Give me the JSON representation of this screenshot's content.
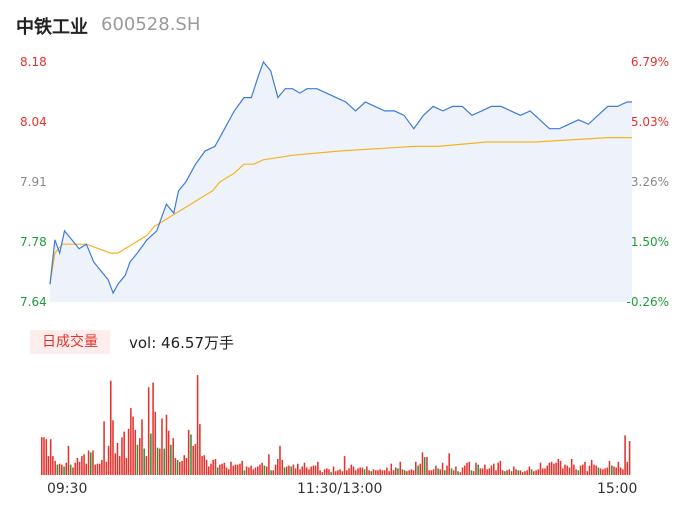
{
  "header": {
    "name": "中铁工业",
    "code": "600528.SH"
  },
  "volume_panel": {
    "tab_label": "日成交量",
    "vol_prefix": "vol: ",
    "vol_value": "46.57万手"
  },
  "colors": {
    "price_line": "#3e7bdc",
    "avg_line": "#f5b324",
    "up": "#e5322d",
    "down": "#1f9a3a",
    "fill": "#eef3fb"
  },
  "chart_data": [
    {
      "type": "line",
      "subtype": "intraday-price",
      "ylim": [
        7.64,
        8.18
      ],
      "y_ticks": [
        "8.18",
        "8.04",
        "7.91",
        "7.78",
        "7.64"
      ],
      "y_ticks_right": [
        "6.79%",
        "5.03%",
        "3.26%",
        "1.50%",
        "-0.26%"
      ],
      "x_ticks": [
        "09:30",
        "11:30/13:00",
        "15:00"
      ],
      "series": [
        {
          "key": "price",
          "points": [
            [
              0,
              7.68
            ],
            [
              2,
              7.78
            ],
            [
              4,
              7.75
            ],
            [
              6,
              7.8
            ],
            [
              9,
              7.78
            ],
            [
              12,
              7.76
            ],
            [
              15,
              7.77
            ],
            [
              18,
              7.73
            ],
            [
              21,
              7.71
            ],
            [
              24,
              7.69
            ],
            [
              26,
              7.66
            ],
            [
              28,
              7.68
            ],
            [
              31,
              7.7
            ],
            [
              33,
              7.73
            ],
            [
              36,
              7.75
            ],
            [
              40,
              7.78
            ],
            [
              44,
              7.8
            ],
            [
              48,
              7.86
            ],
            [
              51,
              7.84
            ],
            [
              53,
              7.89
            ],
            [
              56,
              7.91
            ],
            [
              60,
              7.95
            ],
            [
              64,
              7.98
            ],
            [
              68,
              7.99
            ],
            [
              72,
              8.03
            ],
            [
              76,
              8.07
            ],
            [
              80,
              8.1
            ],
            [
              83,
              8.1
            ],
            [
              86,
              8.15
            ],
            [
              88,
              8.18
            ],
            [
              91,
              8.16
            ],
            [
              94,
              8.1
            ],
            [
              97,
              8.12
            ],
            [
              100,
              8.12
            ],
            [
              103,
              8.11
            ],
            [
              106,
              8.12
            ],
            [
              110,
              8.12
            ],
            [
              114,
              8.11
            ],
            [
              118,
              8.1
            ],
            [
              122,
              8.09
            ],
            [
              126,
              8.07
            ],
            [
              130,
              8.09
            ],
            [
              134,
              8.08
            ],
            [
              138,
              8.07
            ],
            [
              142,
              8.07
            ],
            [
              146,
              8.06
            ],
            [
              150,
              8.03
            ],
            [
              154,
              8.06
            ],
            [
              158,
              8.08
            ],
            [
              162,
              8.07
            ],
            [
              166,
              8.08
            ],
            [
              170,
              8.08
            ],
            [
              174,
              8.06
            ],
            [
              178,
              8.07
            ],
            [
              182,
              8.08
            ],
            [
              186,
              8.08
            ],
            [
              190,
              8.07
            ],
            [
              194,
              8.06
            ],
            [
              198,
              8.07
            ],
            [
              202,
              8.05
            ],
            [
              206,
              8.03
            ],
            [
              210,
              8.03
            ],
            [
              214,
              8.04
            ],
            [
              218,
              8.05
            ],
            [
              222,
              8.04
            ],
            [
              226,
              8.06
            ],
            [
              230,
              8.08
            ],
            [
              234,
              8.08
            ],
            [
              238,
              8.09
            ],
            [
              240,
              8.09
            ]
          ]
        },
        {
          "key": "avg",
          "points": [
            [
              0,
              7.68
            ],
            [
              2,
              7.75
            ],
            [
              5,
              7.77
            ],
            [
              10,
              7.77
            ],
            [
              15,
              7.77
            ],
            [
              20,
              7.76
            ],
            [
              25,
              7.75
            ],
            [
              28,
              7.75
            ],
            [
              31,
              7.76
            ],
            [
              34,
              7.77
            ],
            [
              37,
              7.78
            ],
            [
              40,
              7.79
            ],
            [
              43,
              7.81
            ],
            [
              46,
              7.82
            ],
            [
              49,
              7.83
            ],
            [
              52,
              7.84
            ],
            [
              55,
              7.85
            ],
            [
              58,
              7.86
            ],
            [
              61,
              7.87
            ],
            [
              64,
              7.88
            ],
            [
              67,
              7.89
            ],
            [
              70,
              7.91
            ],
            [
              73,
              7.92
            ],
            [
              76,
              7.93
            ],
            [
              80,
              7.95
            ],
            [
              84,
              7.95
            ],
            [
              88,
              7.96
            ],
            [
              100,
              7.97
            ],
            [
              120,
              7.98
            ],
            [
              150,
              7.99
            ],
            [
              160,
              7.99
            ],
            [
              180,
              8.0
            ],
            [
              200,
              8.0
            ],
            [
              230,
              8.01
            ],
            [
              240,
              8.01
            ]
          ]
        }
      ]
    },
    {
      "type": "bar",
      "subtype": "volume",
      "values": [
        0.4,
        0.4,
        0.38,
        0.2,
        0.38,
        0.2,
        0.15,
        0.11,
        0.12,
        0.11,
        0.09,
        0.13,
        0.31,
        0.11,
        0.08,
        0.13,
        0.18,
        0.14,
        0.2,
        0.22,
        0.12,
        0.26,
        0.24,
        0.26,
        0.11,
        0.12,
        0.12,
        0.16,
        0.57,
        0.14,
        0.31,
        1.0,
        0.58,
        0.23,
        0.34,
        0.2,
        0.4,
        0.46,
        0.18,
        0.49,
        0.71,
        0.62,
        0.48,
        0.32,
        0.39,
        0.59,
        0.28,
        0.2,
        0.93,
        0.44,
        0.98,
        0.67,
        0.29,
        0.28,
        0.6,
        0.28,
        0.64,
        0.47,
        0.32,
        0.39,
        0.18,
        0.16,
        0.14,
        0.15,
        0.21,
        0.18,
        0.48,
        0.43,
        0.31,
        0.33,
        1.06,
        0.54,
        0.2,
        0.21,
        0.16,
        0.09,
        0.12,
        0.16,
        0.17,
        0.08,
        0.11,
        0.12,
        0.13,
        0.08,
        0.06,
        0.14,
        0.1,
        0.11,
        0.11,
        0.12,
        0.15,
        0.05,
        0.09,
        0.08,
        0.1,
        0.06,
        0.08,
        0.09,
        0.11,
        0.13,
        0.1,
        0.09,
        0.22,
        0.05,
        0.05,
        0.11,
        0.17,
        0.31,
        0.16,
        0.08,
        0.09,
        0.1,
        0.09,
        0.11,
        0.07,
        0.12,
        0.06,
        0.09,
        0.13,
        0.08,
        0.06,
        0.09,
        0.1,
        0.1,
        0.14,
        0.05,
        0.03,
        0.06,
        0.07,
        0.06,
        0.03,
        0.09,
        0.04,
        0.05,
        0.06,
        0.04,
        0.2,
        0.05,
        0.07,
        0.11,
        0.09,
        0.05,
        0.07,
        0.08,
        0.08,
        0.06,
        0.09,
        0.05,
        0.04,
        0.06,
        0.05,
        0.05,
        0.06,
        0.05,
        0.05,
        0.08,
        0.04,
        0.12,
        0.05,
        0.08,
        0.07,
        0.14,
        0.06,
        0.05,
        0.04,
        0.05,
        0.06,
        0.05,
        0.14,
        0.1,
        0.12,
        0.24,
        0.19,
        0.19,
        0.05,
        0.05,
        0.06,
        0.1,
        0.07,
        0.06,
        0.13,
        0.05,
        0.1,
        0.23,
        0.07,
        0.05,
        0.09,
        0.04,
        0.03,
        0.08,
        0.1,
        0.13,
        0.14,
        0.05,
        0.04,
        0.13,
        0.11,
        0.07,
        0.07,
        0.11,
        0.06,
        0.07,
        0.1,
        0.12,
        0.05,
        0.13,
        0.15,
        0.05,
        0.04,
        0.05,
        0.06,
        0.04,
        0.09,
        0.06,
        0.05,
        0.05,
        0.03,
        0.04,
        0.05,
        0.09,
        0.06,
        0.04,
        0.05,
        0.06,
        0.13,
        0.07,
        0.07,
        0.1,
        0.13,
        0.14,
        0.12,
        0.13,
        0.17,
        0.15,
        0.07,
        0.11,
        0.1,
        0.08,
        0.17,
        0.11,
        0.06,
        0.05,
        0.1,
        0.11,
        0.14,
        0.04,
        0.1,
        0.16,
        0.11,
        0.1,
        0.08,
        0.07,
        0.06,
        0.07,
        0.08,
        0.15,
        0.1,
        0.09,
        0.08,
        0.14,
        0.08,
        0.06,
        0.42,
        0.14,
        0.36
      ]
    }
  ]
}
